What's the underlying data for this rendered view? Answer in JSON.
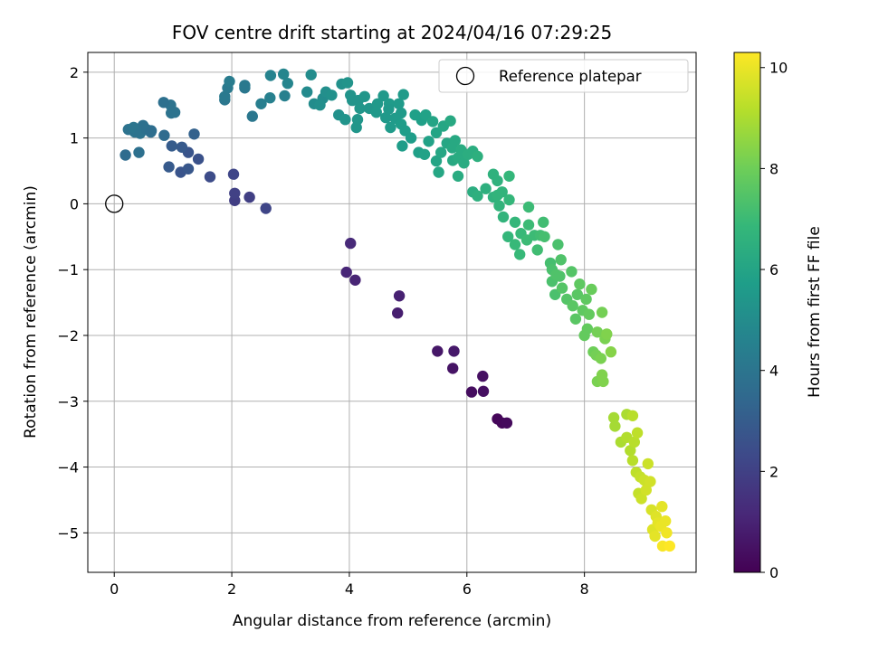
{
  "chart_data": {
    "type": "scatter",
    "title": "FOV centre drift starting at 2024/04/16 07:29:25",
    "xlabel": "Angular distance from reference (arcmin)",
    "ylabel": "Rotation from reference (arcmin)",
    "xlim": [
      -0.45,
      9.9
    ],
    "ylim": [
      -5.6,
      2.3
    ],
    "xticks": [
      0,
      2,
      4,
      6,
      8
    ],
    "yticks": [
      2,
      1,
      0,
      -1,
      -2,
      -3,
      -4,
      -5
    ],
    "grid": true,
    "legend": {
      "entries": [
        "Reference platepar"
      ],
      "position": "top-right"
    },
    "reference_point": {
      "name": "Reference platepar",
      "x": 0,
      "y": 0
    },
    "colorbar": {
      "label": "Hours from first FF file",
      "range": [
        0,
        10.3
      ],
      "ticks": [
        0,
        2,
        4,
        6,
        8,
        10
      ],
      "colormap": "viridis"
    },
    "points": [
      [
        6.52,
        -3.27,
        0.15
      ],
      [
        6.6,
        -3.33,
        0.2
      ],
      [
        6.68,
        -3.33,
        0.25
      ],
      [
        6.08,
        -2.86,
        0.35
      ],
      [
        6.28,
        -2.85,
        0.4
      ],
      [
        6.27,
        -2.62,
        0.45
      ],
      [
        5.76,
        -2.5,
        0.55
      ],
      [
        5.5,
        -2.24,
        0.65
      ],
      [
        5.78,
        -2.24,
        0.7
      ],
      [
        4.82,
        -1.66,
        0.85
      ],
      [
        4.85,
        -1.4,
        0.95
      ],
      [
        4.1,
        -1.16,
        1.05
      ],
      [
        3.95,
        -1.04,
        1.1
      ],
      [
        4.02,
        -0.6,
        1.2
      ],
      [
        2.58,
        -0.07,
        2.15
      ],
      [
        2.3,
        0.1,
        1.95
      ],
      [
        2.05,
        0.05,
        1.9
      ],
      [
        2.05,
        0.16,
        2.0
      ],
      [
        2.03,
        0.45,
        2.2
      ],
      [
        1.63,
        0.41,
        2.4
      ],
      [
        1.43,
        0.68,
        2.6
      ],
      [
        1.13,
        0.48,
        2.7
      ],
      [
        1.26,
        0.53,
        2.8
      ],
      [
        0.93,
        0.56,
        2.9
      ],
      [
        1.26,
        0.78,
        2.7
      ],
      [
        1.15,
        0.86,
        2.9
      ],
      [
        0.98,
        0.88,
        3.0
      ],
      [
        1.36,
        1.06,
        3.2
      ],
      [
        0.19,
        0.74,
        3.6
      ],
      [
        0.42,
        0.78,
        3.8
      ],
      [
        0.85,
        1.04,
        3.6
      ],
      [
        0.63,
        1.11,
        3.7
      ],
      [
        0.49,
        1.19,
        3.8
      ],
      [
        0.35,
        1.09,
        3.9
      ],
      [
        0.24,
        1.13,
        3.9
      ],
      [
        0.33,
        1.16,
        4.0
      ],
      [
        0.44,
        1.07,
        3.9
      ],
      [
        0.55,
        1.13,
        3.8
      ],
      [
        0.62,
        1.09,
        3.7
      ],
      [
        0.97,
        1.38,
        3.9
      ],
      [
        1.03,
        1.39,
        3.9
      ],
      [
        0.96,
        1.5,
        3.9
      ],
      [
        0.84,
        1.54,
        3.8
      ],
      [
        2.35,
        1.33,
        4.1
      ],
      [
        2.22,
        1.76,
        4.1
      ],
      [
        2.22,
        1.8,
        4.2
      ],
      [
        1.88,
        1.58,
        4.1
      ],
      [
        1.88,
        1.63,
        4.2
      ],
      [
        1.93,
        1.76,
        4.2
      ],
      [
        1.96,
        1.86,
        4.3
      ],
      [
        2.5,
        1.52,
        4.4
      ],
      [
        2.65,
        1.61,
        4.5
      ],
      [
        2.66,
        1.95,
        4.6
      ],
      [
        2.9,
        1.64,
        4.5
      ],
      [
        2.88,
        1.97,
        4.7
      ],
      [
        2.95,
        1.83,
        4.7
      ],
      [
        3.28,
        1.7,
        4.9
      ],
      [
        3.4,
        1.52,
        5.0
      ],
      [
        3.35,
        1.96,
        5.0
      ],
      [
        3.55,
        1.6,
        5.0
      ],
      [
        3.6,
        1.7,
        5.1
      ],
      [
        3.5,
        1.5,
        5.1
      ],
      [
        3.7,
        1.65,
        5.2
      ],
      [
        3.82,
        1.35,
        5.2
      ],
      [
        3.87,
        1.82,
        5.2
      ],
      [
        3.97,
        1.84,
        5.3
      ],
      [
        3.93,
        1.28,
        5.3
      ],
      [
        4.02,
        1.65,
        5.3
      ],
      [
        4.05,
        1.57,
        5.3
      ],
      [
        4.12,
        1.16,
        5.4
      ],
      [
        4.15,
        1.57,
        5.3
      ],
      [
        4.18,
        1.45,
        5.4
      ],
      [
        4.14,
        1.28,
        5.4
      ],
      [
        4.26,
        1.63,
        5.4
      ],
      [
        4.34,
        1.45,
        5.4
      ],
      [
        4.46,
        1.39,
        5.5
      ],
      [
        4.48,
        1.52,
        5.5
      ],
      [
        4.58,
        1.64,
        5.5
      ],
      [
        4.62,
        1.31,
        5.5
      ],
      [
        4.68,
        1.52,
        5.6
      ],
      [
        4.7,
        1.16,
        5.6
      ],
      [
        4.67,
        1.44,
        5.5
      ],
      [
        4.78,
        1.3,
        5.6
      ],
      [
        4.84,
        1.52,
        5.6
      ],
      [
        4.88,
        1.38,
        5.6
      ],
      [
        4.88,
        1.21,
        5.7
      ],
      [
        4.92,
        1.66,
        5.6
      ],
      [
        4.9,
        0.88,
        5.7
      ],
      [
        4.95,
        1.11,
        5.7
      ],
      [
        5.05,
        1.0,
        5.7
      ],
      [
        5.12,
        1.35,
        5.8
      ],
      [
        5.18,
        0.78,
        5.8
      ],
      [
        5.23,
        1.27,
        5.8
      ],
      [
        5.3,
        1.35,
        5.9
      ],
      [
        5.35,
        0.95,
        5.9
      ],
      [
        5.28,
        0.75,
        5.9
      ],
      [
        5.42,
        1.25,
        6.0
      ],
      [
        5.48,
        0.65,
        6.0
      ],
      [
        5.48,
        1.08,
        6.0
      ],
      [
        5.52,
        0.48,
        6.1
      ],
      [
        5.56,
        0.78,
        6.1
      ],
      [
        5.6,
        1.18,
        6.1
      ],
      [
        5.66,
        0.92,
        6.1
      ],
      [
        5.72,
        1.26,
        6.2
      ],
      [
        5.75,
        0.85,
        6.2
      ],
      [
        5.76,
        0.66,
        6.2
      ],
      [
        5.8,
        0.96,
        6.2
      ],
      [
        5.85,
        0.42,
        6.3
      ],
      [
        5.85,
        0.7,
        6.3
      ],
      [
        5.9,
        0.82,
        6.3
      ],
      [
        5.95,
        0.62,
        6.3
      ],
      [
        6.02,
        0.75,
        6.4
      ],
      [
        6.1,
        0.8,
        6.4
      ],
      [
        6.1,
        0.18,
        6.4
      ],
      [
        6.18,
        0.72,
        6.5
      ],
      [
        6.18,
        0.12,
        6.5
      ],
      [
        6.32,
        0.23,
        6.5
      ],
      [
        6.45,
        0.45,
        6.6
      ],
      [
        6.45,
        0.1,
        6.6
      ],
      [
        6.52,
        0.35,
        6.6
      ],
      [
        6.52,
        0.13,
        6.7
      ],
      [
        6.55,
        -0.03,
        6.7
      ],
      [
        6.62,
        -0.2,
        6.7
      ],
      [
        6.6,
        0.18,
        6.7
      ],
      [
        6.7,
        -0.5,
        6.8
      ],
      [
        6.72,
        0.06,
        6.8
      ],
      [
        6.72,
        0.42,
        6.8
      ],
      [
        6.82,
        -0.28,
        6.8
      ],
      [
        6.82,
        -0.62,
        6.9
      ],
      [
        6.9,
        -0.77,
        6.9
      ],
      [
        6.92,
        -0.45,
        6.9
      ],
      [
        7.02,
        -0.55,
        7.0
      ],
      [
        7.05,
        -0.05,
        7.0
      ],
      [
        7.05,
        -0.32,
        7.0
      ],
      [
        7.15,
        -0.48,
        7.0
      ],
      [
        7.2,
        -0.7,
        7.1
      ],
      [
        7.25,
        -0.48,
        7.1
      ],
      [
        7.3,
        -0.28,
        7.1
      ],
      [
        7.32,
        -0.5,
        7.2
      ],
      [
        7.42,
        -0.9,
        7.2
      ],
      [
        7.45,
        -1.0,
        7.3
      ],
      [
        7.5,
        -1.38,
        7.3
      ],
      [
        7.55,
        -0.62,
        7.3
      ],
      [
        7.45,
        -1.18,
        7.3
      ],
      [
        7.52,
        -1.08,
        7.4
      ],
      [
        7.58,
        -1.1,
        7.4
      ],
      [
        7.6,
        -0.85,
        7.4
      ],
      [
        7.62,
        -1.28,
        7.5
      ],
      [
        7.7,
        -1.45,
        7.5
      ],
      [
        7.78,
        -1.03,
        7.5
      ],
      [
        7.8,
        -1.55,
        7.6
      ],
      [
        7.85,
        -1.75,
        7.6
      ],
      [
        7.88,
        -1.38,
        7.6
      ],
      [
        7.92,
        -1.22,
        7.7
      ],
      [
        7.97,
        -1.62,
        7.7
      ],
      [
        8.0,
        -2.0,
        7.8
      ],
      [
        8.03,
        -1.45,
        7.7
      ],
      [
        8.05,
        -1.9,
        7.8
      ],
      [
        8.08,
        -1.68,
        7.8
      ],
      [
        8.12,
        -1.3,
        7.9
      ],
      [
        8.15,
        -2.25,
        8.0
      ],
      [
        8.2,
        -2.3,
        8.1
      ],
      [
        8.22,
        -1.95,
        8.1
      ],
      [
        8.22,
        -2.7,
        8.2
      ],
      [
        8.28,
        -2.35,
        8.2
      ],
      [
        8.3,
        -1.65,
        8.1
      ],
      [
        8.3,
        -2.6,
        8.3
      ],
      [
        8.32,
        -2.7,
        8.3
      ],
      [
        8.35,
        -2.05,
        8.2
      ],
      [
        8.38,
        -1.98,
        8.3
      ],
      [
        8.45,
        -2.25,
        8.4
      ],
      [
        8.5,
        -3.25,
        8.9
      ],
      [
        8.52,
        -3.38,
        8.9
      ],
      [
        8.62,
        -3.62,
        9.0
      ],
      [
        8.72,
        -3.2,
        9.0
      ],
      [
        8.72,
        -3.55,
        9.1
      ],
      [
        8.78,
        -3.75,
        9.1
      ],
      [
        8.82,
        -3.22,
        9.2
      ],
      [
        8.82,
        -3.9,
        9.2
      ],
      [
        8.85,
        -3.62,
        9.2
      ],
      [
        8.88,
        -4.08,
        9.3
      ],
      [
        8.9,
        -3.48,
        9.3
      ],
      [
        8.92,
        -4.4,
        9.4
      ],
      [
        8.95,
        -4.15,
        9.4
      ],
      [
        8.97,
        -4.48,
        9.5
      ],
      [
        9.02,
        -4.2,
        9.5
      ],
      [
        9.05,
        -4.35,
        9.6
      ],
      [
        9.08,
        -3.95,
        9.5
      ],
      [
        9.12,
        -4.22,
        9.6
      ],
      [
        9.14,
        -4.65,
        9.7
      ],
      [
        9.16,
        -4.95,
        9.8
      ],
      [
        9.2,
        -5.05,
        9.9
      ],
      [
        9.22,
        -4.75,
        9.8
      ],
      [
        9.25,
        -4.85,
        9.9
      ],
      [
        9.3,
        -4.9,
        10.0
      ],
      [
        9.33,
        -5.2,
        10.2
      ],
      [
        9.4,
        -5.0,
        10.1
      ],
      [
        9.45,
        -5.2,
        10.3
      ],
      [
        9.32,
        -4.6,
        9.9
      ],
      [
        9.38,
        -4.82,
        10.0
      ]
    ]
  }
}
